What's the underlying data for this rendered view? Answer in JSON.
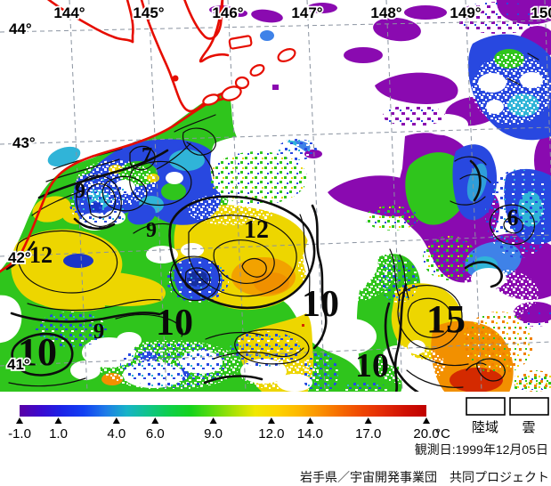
{
  "map": {
    "lon_labels": [
      "144°",
      "145°",
      "146°",
      "147°",
      "148°",
      "149°",
      "150°"
    ],
    "lat_labels": [
      "44°",
      "43°",
      "42°",
      "41°"
    ],
    "contour_labels": [
      "7",
      "9",
      "9",
      "12",
      "12",
      "6",
      "10",
      "10",
      "9",
      "10",
      "15",
      "10"
    ],
    "coast_color": "#e60d00",
    "palette": {
      "cold_purple": "#8a0ab0",
      "blue": "#2848e0",
      "cyan": "#30b4d8",
      "green": "#2fc51c",
      "yellow": "#edd600",
      "orange": "#f29000",
      "warm_red": "#d42a00",
      "cloud_land": "#ffffff"
    }
  },
  "colorbar": {
    "min": -1.0,
    "max": 20.0,
    "ticks": [
      "-1.0",
      "1.0",
      "4.0",
      "6.0",
      "9.0",
      "12.0",
      "14.0",
      "17.0",
      "20.0"
    ],
    "unit": "°C",
    "stops": [
      "#5a00a5",
      "#3a0ad0",
      "#1b24e8",
      "#1240f2",
      "#1e7ae8",
      "#17b3c8",
      "#10c48a",
      "#0ecf4a",
      "#15d31c",
      "#5cdc0f",
      "#a8e205",
      "#f0e800",
      "#fdd400",
      "#fdb900",
      "#fb9200",
      "#f66a00",
      "#ef4503",
      "#e22a06",
      "#d01103",
      "#c00000"
    ]
  },
  "legend": {
    "land_label": "陸域",
    "cloud_label": "雲"
  },
  "footer": {
    "observation_date": "観測日:1999年12月05日",
    "credit": "岩手県／宇宙開発事業団　共同プロジェクト"
  }
}
